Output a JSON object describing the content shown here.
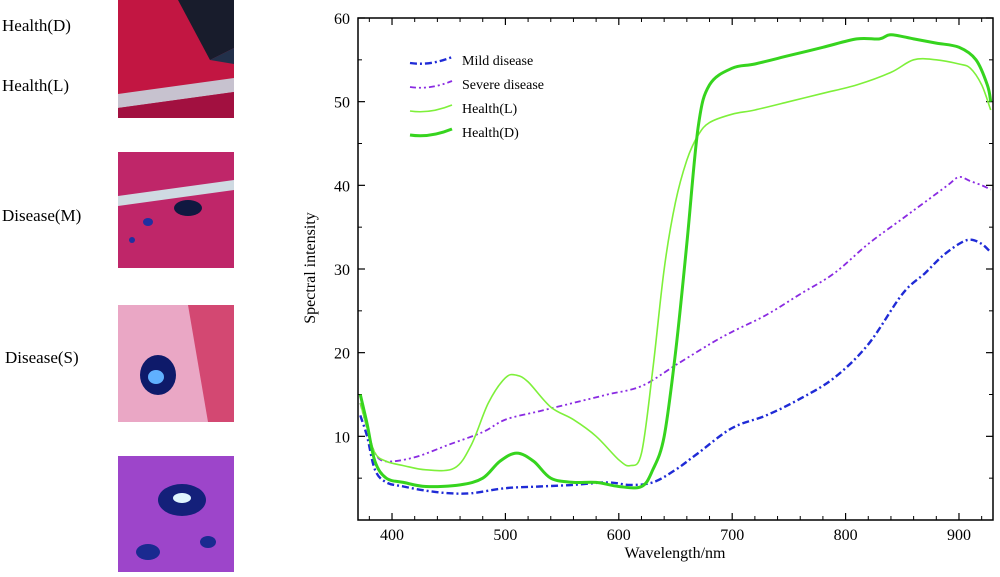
{
  "image_labels": [
    "Health(D)",
    "Health(L)",
    "Disease(M)",
    "Disease(S)"
  ],
  "colors": {
    "mild": "#1f2bd6",
    "severe": "#8a2be2",
    "health_light": "#7ef03a",
    "health_dark": "#36d41e"
  },
  "chart_data": {
    "type": "line",
    "title": "",
    "xlabel": "Wavelength/nm",
    "ylabel": "Spectral intensity",
    "xlim": [
      370,
      930
    ],
    "ylim": [
      0,
      60
    ],
    "x_ticks": [
      "400",
      "500",
      "600",
      "700",
      "800",
      "900"
    ],
    "y_ticks": [
      "10",
      "20",
      "30",
      "40",
      "50",
      "60"
    ],
    "legend_position": "top-left",
    "series": [
      {
        "name": "Mild disease",
        "style": "dash-dot",
        "x": [
          372,
          378,
          385,
          395,
          410,
          430,
          450,
          470,
          500,
          530,
          560,
          590,
          610,
          630,
          650,
          670,
          700,
          730,
          760,
          790,
          820,
          850,
          870,
          885,
          900,
          910,
          920,
          928
        ],
        "y": [
          12.5,
          10,
          6,
          4.5,
          4,
          3.5,
          3.2,
          3.2,
          3.8,
          4,
          4.2,
          4.5,
          4.2,
          4.5,
          6,
          8,
          11,
          12.5,
          14.5,
          17,
          21,
          27,
          29.5,
          31.5,
          33,
          33.5,
          33,
          32
        ]
      },
      {
        "name": "Severe disease",
        "style": "dash-dot-dot",
        "x": [
          372,
          378,
          385,
          395,
          420,
          450,
          480,
          500,
          530,
          560,
          590,
          620,
          650,
          680,
          700,
          730,
          760,
          790,
          820,
          850,
          870,
          890,
          900,
          910,
          920,
          928
        ],
        "y": [
          14,
          11,
          8,
          7,
          7.5,
          9,
          10.5,
          12,
          13,
          14,
          15,
          16,
          18.5,
          21,
          22.5,
          24.5,
          27,
          29.5,
          33,
          36,
          38,
          40,
          41,
          40.5,
          40,
          39.5
        ]
      },
      {
        "name": "Health(L)",
        "style": "solid-thin",
        "x": [
          372,
          378,
          385,
          395,
          410,
          430,
          455,
          470,
          485,
          500,
          510,
          520,
          540,
          560,
          580,
          600,
          610,
          620,
          630,
          640,
          650,
          660,
          670,
          680,
          700,
          720,
          750,
          780,
          810,
          840,
          860,
          880,
          900,
          910,
          920,
          928
        ],
        "y": [
          14,
          11,
          8,
          7,
          6.5,
          6,
          6.2,
          9,
          14,
          17,
          17.3,
          16.5,
          13.5,
          12,
          10,
          7.2,
          6.5,
          8,
          18,
          30,
          38,
          43,
          46,
          47.5,
          48.5,
          49,
          50,
          51,
          52,
          53.5,
          55,
          55,
          54.5,
          54,
          52,
          49
        ]
      },
      {
        "name": "Health(D)",
        "style": "solid-thick",
        "x": [
          372,
          378,
          385,
          395,
          410,
          430,
          460,
          480,
          495,
          510,
          525,
          540,
          560,
          580,
          600,
          620,
          630,
          640,
          650,
          660,
          670,
          680,
          700,
          720,
          750,
          780,
          810,
          830,
          840,
          860,
          880,
          900,
          915,
          925,
          928
        ],
        "y": [
          15,
          11.5,
          7,
          5,
          4.5,
          4,
          4.2,
          5,
          7,
          8,
          7,
          5,
          4.5,
          4.5,
          4,
          4,
          6,
          10,
          20,
          33,
          47,
          52,
          54,
          54.5,
          55.5,
          56.5,
          57.5,
          57.5,
          58,
          57.5,
          57,
          56.5,
          55,
          52,
          50
        ]
      }
    ]
  }
}
